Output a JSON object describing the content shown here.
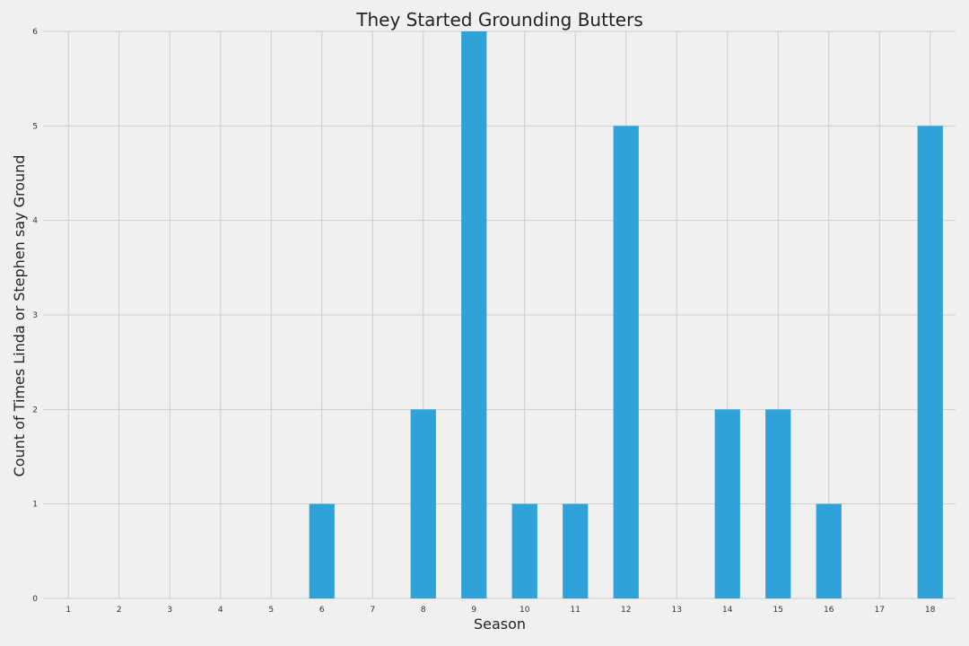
{
  "chart_data": {
    "type": "bar",
    "title": "They Started Grounding Butters",
    "xlabel": "Season",
    "ylabel": "Count of Times Linda or Stephen say Ground",
    "categories": [
      "1",
      "2",
      "3",
      "4",
      "5",
      "6",
      "7",
      "8",
      "9",
      "10",
      "11",
      "12",
      "13",
      "14",
      "15",
      "16",
      "17",
      "18"
    ],
    "values": [
      0,
      0,
      0,
      0,
      0,
      1,
      0,
      2,
      6,
      1,
      1,
      5,
      0,
      2,
      2,
      1,
      0,
      5
    ],
    "ylim": [
      0,
      6
    ],
    "yticks": [
      0,
      1,
      2,
      3,
      4,
      5,
      6
    ],
    "grid": true,
    "legend": "none",
    "colors": {
      "bar": "#30a2da",
      "background": "#f0f0f0",
      "grid": "#cbcbcb",
      "text": "#222222"
    }
  }
}
